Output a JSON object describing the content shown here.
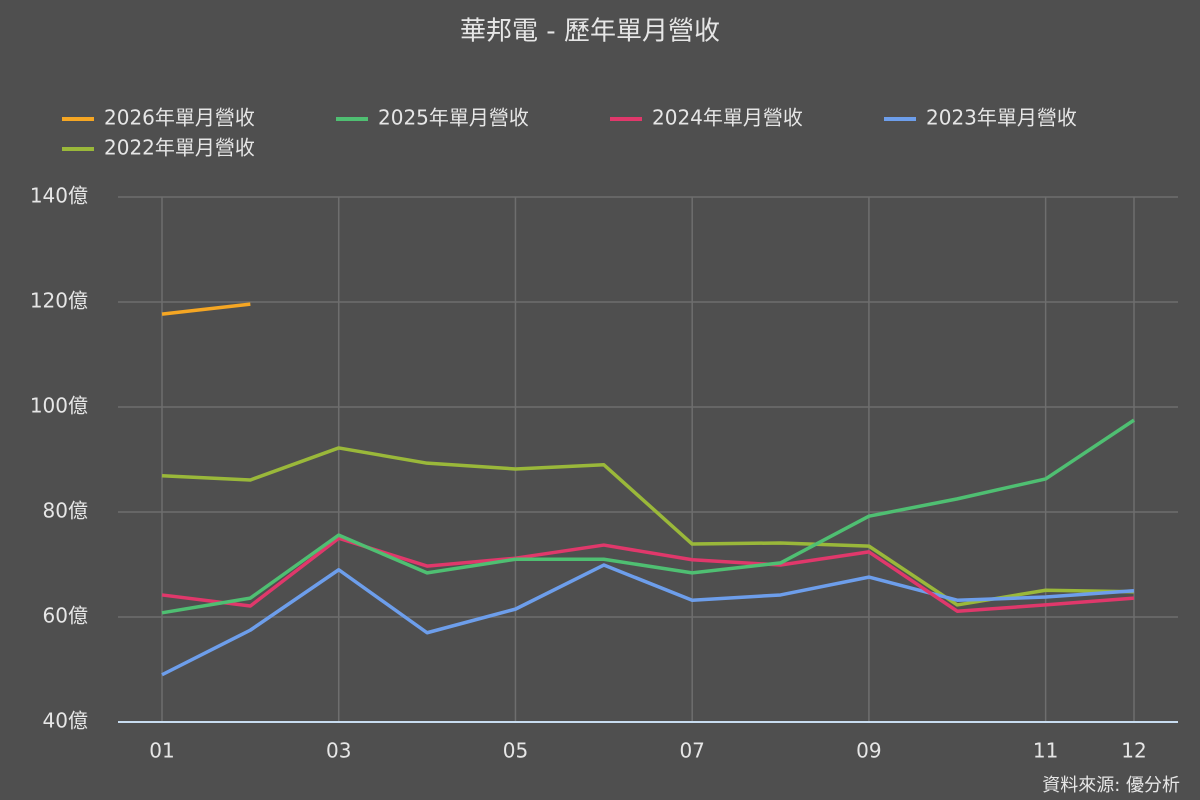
{
  "chart_data": {
    "type": "line",
    "title": "華邦電 - 歷年單月營收",
    "source": "資料來源: 優分析",
    "categories": [
      "01",
      null,
      "03",
      null,
      "05",
      null,
      "07",
      null,
      "09",
      null,
      "11",
      "12"
    ],
    "series": [
      {
        "name": "2026年單月營收",
        "color": "#f5a623",
        "values": [
          117.7,
          119.6,
          null,
          null,
          null,
          null,
          null,
          null,
          null,
          null,
          null,
          null
        ]
      },
      {
        "name": "2025年單月營收",
        "color": "#4fbf72",
        "values": [
          60.8,
          63.6,
          75.6,
          68.4,
          71.0,
          71.0,
          68.4,
          70.3,
          79.2,
          82.5,
          86.3,
          97.5
        ]
      },
      {
        "name": "2024年單月營收",
        "color": "#e0386b",
        "values": [
          64.2,
          62.1,
          75.0,
          69.7,
          71.2,
          73.7,
          70.9,
          69.9,
          72.4,
          61.1,
          62.3,
          63.6
        ]
      },
      {
        "name": "2023年單月營收",
        "color": "#6d9eeb",
        "values": [
          49.0,
          57.5,
          69.0,
          57.0,
          61.5,
          69.9,
          63.2,
          64.2,
          67.6,
          63.2,
          63.8,
          65.0
        ]
      },
      {
        "name": "2022年單月營收",
        "color": "#9ab83a",
        "values": [
          86.9,
          86.1,
          92.2,
          89.3,
          88.2,
          89.0,
          73.9,
          74.1,
          73.5,
          62.3,
          65.1,
          64.8
        ]
      }
    ],
    "ylim": [
      40,
      140
    ],
    "yticks": [
      {
        "value": 40,
        "label": "40億"
      },
      {
        "value": 60,
        "label": "60億"
      },
      {
        "value": 80,
        "label": "80億"
      },
      {
        "value": 100,
        "label": "100億"
      },
      {
        "value": 120,
        "label": "120億"
      },
      {
        "value": 140,
        "label": "140億"
      }
    ],
    "grid": true
  }
}
